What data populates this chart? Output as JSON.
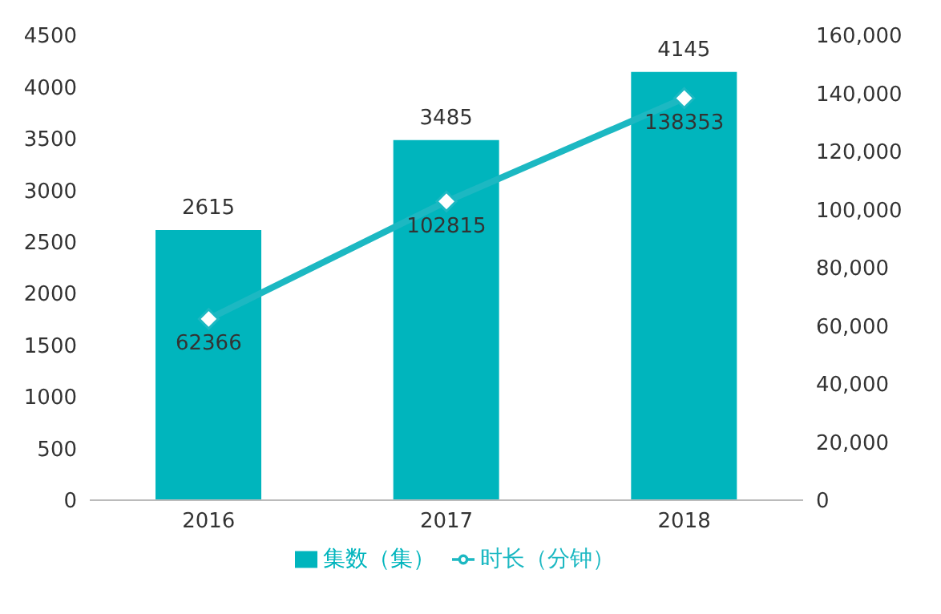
{
  "chart_data": {
    "type": "bar",
    "categories": [
      "2016",
      "2017",
      "2018"
    ],
    "series": [
      {
        "name": "集数（集）",
        "color": "#00b5bd",
        "values": [
          2615,
          3485,
          4145
        ]
      },
      {
        "name": "时长（分钟）",
        "type": "line",
        "axis": "y2",
        "color": "#1cb8c2",
        "values": [
          62366,
          102815,
          138353
        ]
      }
    ],
    "ylim": [
      0,
      4500
    ],
    "yticks": [
      0,
      500,
      1000,
      1500,
      2000,
      2500,
      3000,
      3500,
      4000,
      4500
    ],
    "y2lim": [
      0,
      160000
    ],
    "y2ticks": [
      {
        "value": 0,
        "label": "0"
      },
      {
        "value": 20000,
        "label": "20,000"
      },
      {
        "value": 40000,
        "label": "40,000"
      },
      {
        "value": 60000,
        "label": "60,000"
      },
      {
        "value": 80000,
        "label": "80,000"
      },
      {
        "value": 100000,
        "label": "100,000"
      },
      {
        "value": 120000,
        "label": "120,000"
      },
      {
        "value": 140000,
        "label": "140,000"
      },
      {
        "value": 160000,
        "label": "160,000"
      }
    ],
    "data_labels": true,
    "grid": false,
    "legend": "bottom",
    "marker": "diamond",
    "line_style": "solid"
  }
}
